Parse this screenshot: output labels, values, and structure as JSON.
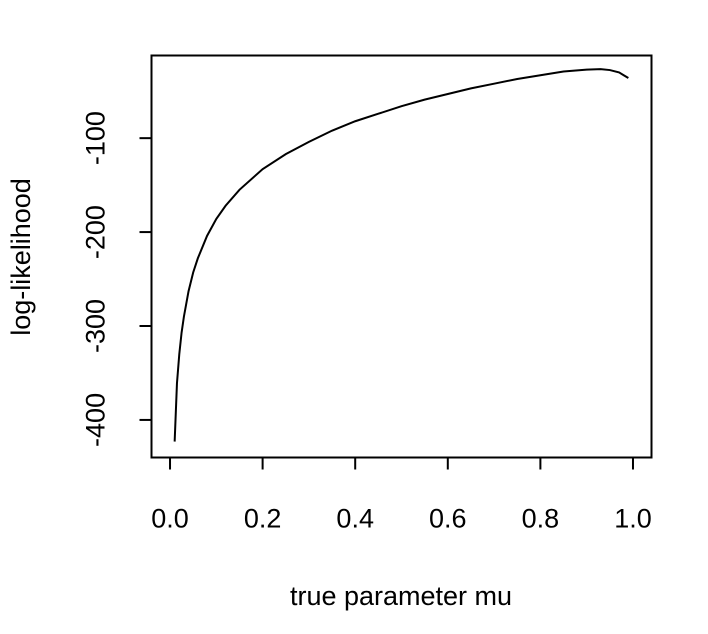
{
  "chart_data": {
    "type": "line",
    "title": "",
    "xlabel": "true parameter mu",
    "ylabel": "log-likelihood",
    "xlim": [
      -0.04,
      1.04
    ],
    "ylim": [
      -440,
      -12
    ],
    "x_ticks": [
      0.0,
      0.2,
      0.4,
      0.6,
      0.8,
      1.0
    ],
    "x_tick_labels": [
      "0.0",
      "0.2",
      "0.4",
      "0.6",
      "0.8",
      "1.0"
    ],
    "y_ticks": [
      -400,
      -300,
      -200,
      -100
    ],
    "y_tick_labels": [
      "-400",
      "-300",
      "-200",
      "-100"
    ],
    "grid": false,
    "legend": "none",
    "line_color": "#000000",
    "series": [
      {
        "x": [
          0.01,
          0.015,
          0.02,
          0.025,
          0.03,
          0.04,
          0.05,
          0.06,
          0.08,
          0.1,
          0.12,
          0.15,
          0.2,
          0.25,
          0.3,
          0.35,
          0.4,
          0.45,
          0.5,
          0.55,
          0.6,
          0.65,
          0.7,
          0.75,
          0.8,
          0.85,
          0.9,
          0.93,
          0.95,
          0.97,
          0.98,
          0.99
        ],
        "y": [
          -423,
          -361,
          -330,
          -307,
          -290,
          -263,
          -243,
          -228,
          -204,
          -186,
          -172,
          -155,
          -133,
          -117,
          -104,
          -92,
          -82,
          -74,
          -66,
          -59,
          -53,
          -47,
          -42,
          -37,
          -33,
          -29,
          -27,
          -26.5,
          -27.5,
          -30,
          -33,
          -36
        ]
      }
    ]
  }
}
